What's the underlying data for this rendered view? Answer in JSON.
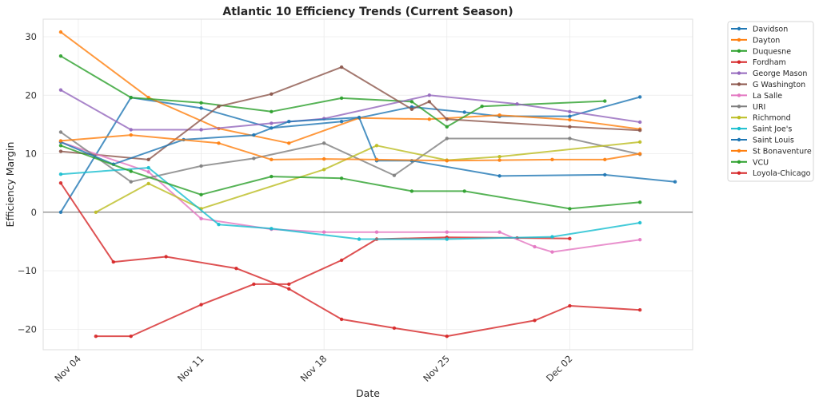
{
  "chart_data": {
    "type": "line",
    "title": "Atlantic 10 Efficiency Trends (Current Season)",
    "xlabel": "Date",
    "ylabel": "Efficiency Margin",
    "x_unit": "days since Nov 04",
    "xlim": [
      -2,
      35
    ],
    "ylim": [
      -23.5,
      33
    ],
    "grid": true,
    "zero_line": true,
    "legend_position": "outside-top-right",
    "x_ticks": [
      {
        "value": 0,
        "label": "Nov 04"
      },
      {
        "value": 7,
        "label": "Nov 11"
      },
      {
        "value": 14,
        "label": "Nov 18"
      },
      {
        "value": 21,
        "label": "Nov 25"
      },
      {
        "value": 28,
        "label": "Dec 02"
      }
    ],
    "y_ticks": [
      {
        "value": -20,
        "label": "−20"
      },
      {
        "value": -10,
        "label": "−10"
      },
      {
        "value": 0,
        "label": "0"
      },
      {
        "value": 10,
        "label": "10"
      },
      {
        "value": 20,
        "label": "20"
      },
      {
        "value": 30,
        "label": "30"
      }
    ],
    "series": [
      {
        "name": "Davidson",
        "color": "#1f77b4",
        "x": [
          -1,
          3,
          7,
          11,
          15,
          19,
          22,
          24,
          28,
          32
        ],
        "y": [
          0,
          19.6,
          17.8,
          14.4,
          15.5,
          18.0,
          17.1,
          16.4,
          16.4,
          19.7
        ]
      },
      {
        "name": "Dayton",
        "color": "#ff7f0e",
        "x": [
          -1,
          4,
          8,
          12,
          16,
          20,
          24,
          28,
          32
        ],
        "y": [
          30.8,
          19.6,
          14.3,
          11.8,
          16.1,
          15.9,
          16.6,
          15.8,
          14.2
        ]
      },
      {
        "name": "Duquesne",
        "color": "#2ca02c",
        "x": [
          -1,
          3,
          7,
          11,
          15,
          19,
          21,
          23,
          30
        ],
        "y": [
          26.7,
          19.6,
          18.7,
          17.2,
          19.5,
          18.9,
          14.6,
          18.1,
          19.0
        ]
      },
      {
        "name": "Fordham",
        "color": "#d62728",
        "x": [
          1,
          3,
          7,
          10,
          12,
          15,
          17,
          21,
          25,
          28
        ],
        "y": [
          -21.2,
          -21.2,
          -15.8,
          -12.3,
          -12.3,
          -8.2,
          -4.6,
          -4.3,
          -4.4,
          -4.5
        ]
      },
      {
        "name": "George Mason",
        "color": "#9467bd",
        "x": [
          -1,
          3,
          7,
          11,
          14,
          20,
          25,
          28,
          32
        ],
        "y": [
          20.9,
          14.1,
          14.1,
          15.2,
          16.0,
          20.0,
          18.5,
          17.2,
          15.4
        ]
      },
      {
        "name": "G Washington",
        "color": "#8c564b",
        "x": [
          -1,
          4,
          8,
          11,
          15,
          19,
          20,
          21,
          28,
          32
        ],
        "y": [
          10.4,
          9.0,
          18.1,
          20.2,
          24.8,
          17.6,
          18.9,
          15.9,
          14.6,
          14.0
        ]
      },
      {
        "name": "La Salle",
        "color": "#e377c2",
        "x": [
          -1,
          4,
          7,
          11,
          14,
          17,
          21,
          24,
          26,
          27,
          32
        ],
        "y": [
          12.0,
          6.9,
          -1.1,
          -2.9,
          -3.4,
          -3.4,
          -3.4,
          -3.4,
          -5.9,
          -6.8,
          -4.7
        ]
      },
      {
        "name": "URI",
        "color": "#7f7f7f",
        "x": [
          -1,
          3,
          7,
          10,
          14,
          18,
          21,
          28,
          32
        ],
        "y": [
          13.7,
          5.2,
          7.9,
          9.2,
          11.8,
          6.3,
          12.6,
          12.6,
          9.9
        ]
      },
      {
        "name": "Richmond",
        "color": "#bcbd22",
        "x": [
          1,
          4,
          7,
          14,
          17,
          21,
          24,
          32
        ],
        "y": [
          0,
          4.9,
          0.6,
          7.3,
          11.4,
          8.9,
          9.5,
          12.0
        ]
      },
      {
        "name": "Saint Joe's",
        "color": "#17becf",
        "x": [
          -1,
          4,
          8,
          11,
          16,
          21,
          27,
          32
        ],
        "y": [
          6.5,
          7.6,
          -2.1,
          -2.8,
          -4.6,
          -4.6,
          -4.2,
          -1.8
        ]
      },
      {
        "name": "Saint Louis",
        "color": "#1f77b4",
        "x": [
          -1,
          2,
          6,
          10,
          12,
          16,
          17,
          19,
          24,
          30,
          34
        ],
        "y": [
          12.0,
          8.2,
          12.4,
          13.2,
          15.5,
          16.2,
          8.8,
          8.8,
          6.2,
          6.4,
          5.2
        ]
      },
      {
        "name": "St Bonaventure",
        "color": "#ff7f0e",
        "x": [
          -1,
          3,
          8,
          11,
          14,
          17,
          21,
          24,
          27,
          30,
          32
        ],
        "y": [
          12.2,
          13.2,
          11.8,
          9.0,
          9.1,
          9.0,
          8.8,
          8.9,
          9.0,
          9.0,
          10.0
        ]
      },
      {
        "name": "VCU",
        "color": "#2ca02c",
        "x": [
          -1,
          3,
          7,
          11,
          15,
          19,
          22,
          28,
          32
        ],
        "y": [
          11.4,
          7.0,
          3.0,
          6.1,
          5.8,
          3.6,
          3.6,
          0.6,
          1.7
        ]
      },
      {
        "name": "Loyola-Chicago",
        "color": "#d62728",
        "x": [
          -1,
          2,
          5,
          9,
          12,
          15,
          18,
          21,
          26,
          28,
          32
        ],
        "y": [
          5.0,
          -8.5,
          -7.6,
          -9.6,
          -13.1,
          -18.3,
          -19.8,
          -21.2,
          -18.5,
          -16.0,
          -16.7
        ]
      }
    ]
  }
}
